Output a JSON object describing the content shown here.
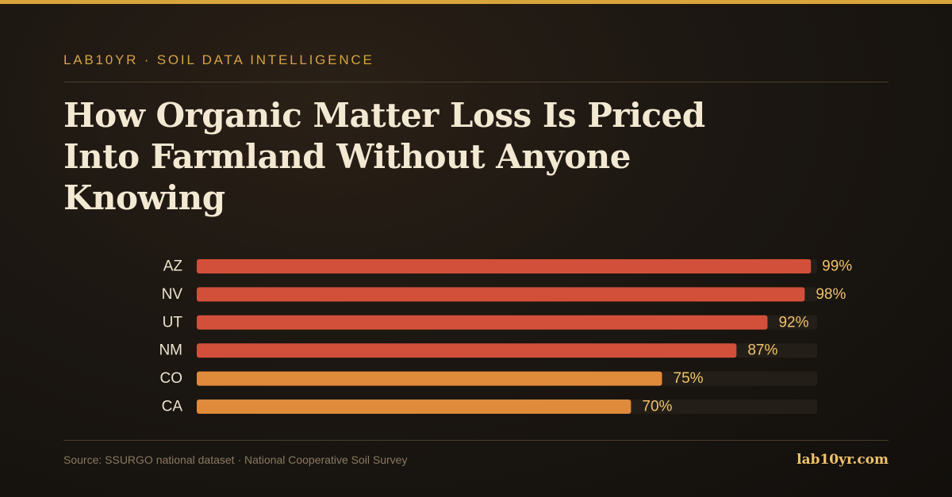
{
  "header": {
    "eyebrow": "LAB10YR · SOIL DATA INTELLIGENCE",
    "title": "How Organic Matter Loss Is Priced Into Farmland Without Anyone Knowing"
  },
  "footer": {
    "source": "Source: SSURGO national dataset · National Cooperative Soil Survey",
    "site": "lab10yr.com"
  },
  "colors": {
    "accent_gold": "#d9a43c",
    "bar_high": "#d2503a",
    "bar_mid": "#e08a3c",
    "track": "#241e18",
    "value_text": "#f0c36a",
    "label_text": "#ede3cf"
  },
  "chart_data": {
    "type": "bar",
    "orientation": "horizontal",
    "categories": [
      "AZ",
      "NV",
      "UT",
      "NM",
      "CO",
      "CA"
    ],
    "values": [
      99,
      98,
      92,
      87,
      75,
      70
    ],
    "value_labels": [
      "99%",
      "98%",
      "92%",
      "87%",
      "75%",
      "70%"
    ],
    "xlim": [
      0,
      100
    ],
    "grid": false,
    "legend": "none"
  }
}
